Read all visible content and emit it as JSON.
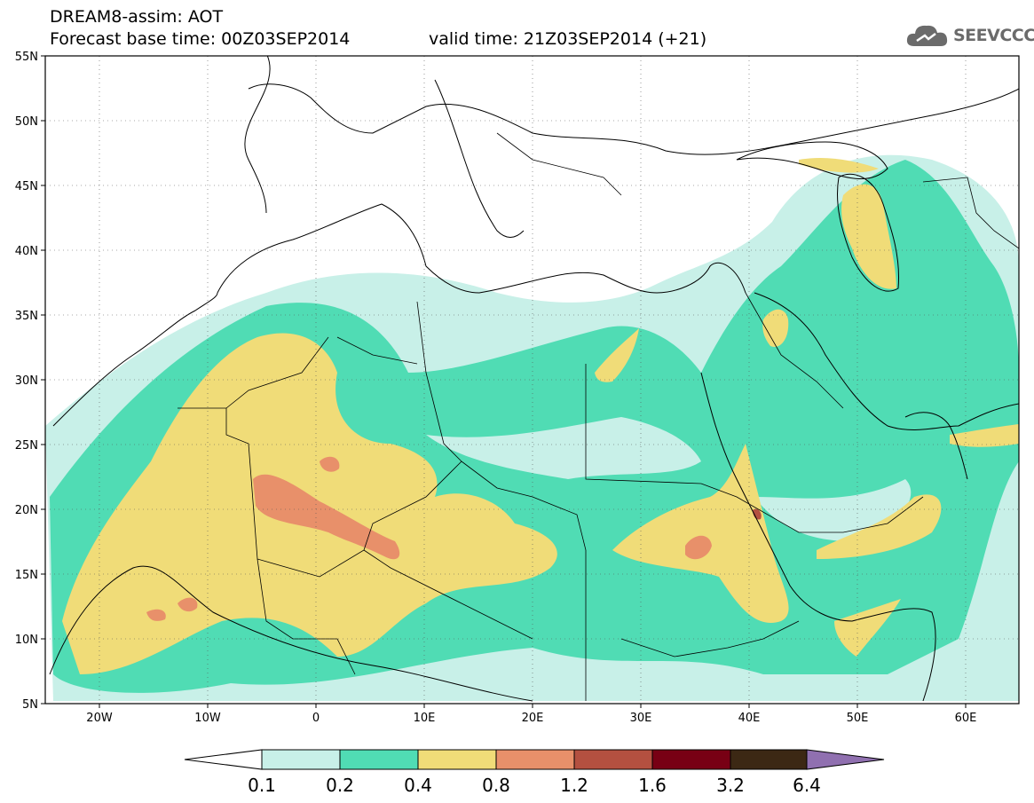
{
  "header": {
    "title": "DREAM8-assim: AOT",
    "base_time": "Forecast base time: 00Z03SEP2014",
    "valid_time": "valid time: 21Z03SEP2014 (+21)",
    "logo_text": "SEEVCCC",
    "logo_icon": "cloud-icon"
  },
  "map": {
    "lat_labels": [
      "55N",
      "50N",
      "45N",
      "40N",
      "35N",
      "30N",
      "25N",
      "20N",
      "15N",
      "10N",
      "5N"
    ],
    "lon_labels": [
      "20W",
      "10W",
      "0",
      "10E",
      "20E",
      "30E",
      "40E",
      "50E",
      "60E"
    ],
    "lat_range": [
      5,
      55
    ],
    "lon_range": [
      -25,
      65
    ],
    "grid": "dotted",
    "variable": "AOT"
  },
  "legend": {
    "levels": [
      "0.1",
      "0.2",
      "0.4",
      "0.8",
      "1.2",
      "1.6",
      "3.2",
      "6.4"
    ],
    "colors": [
      "#c8f0e8",
      "#50dcb4",
      "#f0dc78",
      "#e8906a",
      "#b45040",
      "#780014",
      "#3c2814",
      "#9070b0"
    ]
  }
}
